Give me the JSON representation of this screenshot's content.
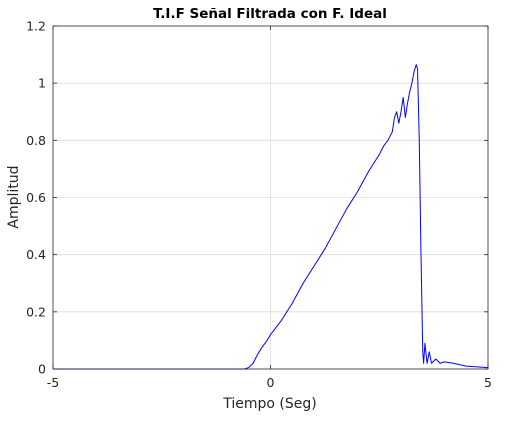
{
  "chart_data": {
    "type": "line",
    "title": "T.I.F Señal Filtrada con F. Ideal",
    "xlabel": "Tiempo (Seg)",
    "ylabel": "Amplitud",
    "xlim": [
      -5,
      5
    ],
    "ylim": [
      0,
      1.2
    ],
    "xticks": [
      "-5",
      "0",
      "5"
    ],
    "yticks": [
      "0",
      "0.2",
      "0.4",
      "0.6",
      "0.8",
      "1",
      "1.2"
    ],
    "grid": true,
    "line_color": "#0000ff",
    "series": [
      {
        "x": [
          -5,
          -0.6,
          -0.5,
          -0.4,
          -0.3,
          -0.2,
          -0.1,
          0,
          0.25,
          0.5,
          0.75,
          1.0,
          1.25,
          1.5,
          1.75,
          2.0,
          2.25,
          2.5,
          2.6,
          2.7,
          2.8,
          2.85,
          2.9,
          2.95,
          3.0,
          3.05,
          3.1,
          3.15,
          3.2,
          3.25,
          3.3,
          3.35,
          3.38,
          3.42,
          3.46,
          3.5,
          3.52,
          3.55,
          3.6,
          3.65,
          3.7,
          3.8,
          3.9,
          4.0,
          4.2,
          4.5,
          5
        ],
        "y": [
          0,
          0,
          0.005,
          0.02,
          0.05,
          0.075,
          0.095,
          0.12,
          0.17,
          0.23,
          0.3,
          0.36,
          0.42,
          0.49,
          0.56,
          0.62,
          0.69,
          0.75,
          0.78,
          0.8,
          0.83,
          0.88,
          0.9,
          0.86,
          0.9,
          0.95,
          0.88,
          0.93,
          0.97,
          1.0,
          1.04,
          1.065,
          1.05,
          0.8,
          0.4,
          0.06,
          0.02,
          0.09,
          0.02,
          0.06,
          0.02,
          0.035,
          0.02,
          0.025,
          0.02,
          0.01,
          0.005
        ]
      }
    ]
  }
}
